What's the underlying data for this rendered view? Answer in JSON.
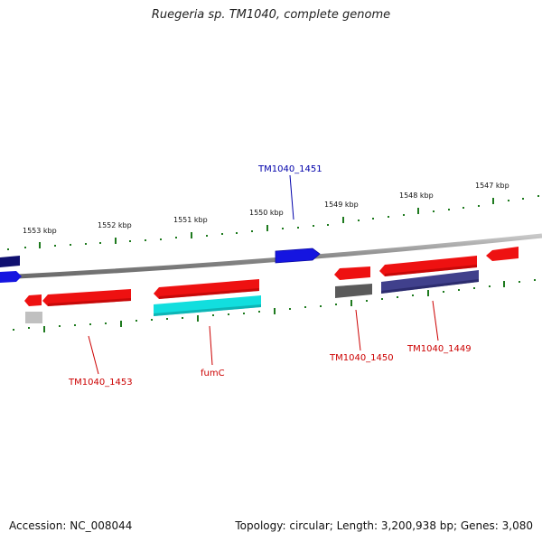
{
  "title": "Ruegeria sp. TM1040, complete genome",
  "footer": {
    "accession": "Accession: NC_008044",
    "topology": "Topology: circular; Length: 3,200,938 bp; Genes: 3,080"
  },
  "ruler_labels": [
    "1553 kbp",
    "1552 kbp",
    "1551 kbp",
    "1550 kbp",
    "1549 kbp",
    "1548 kbp",
    "1547 kbp"
  ],
  "gene_labels": [
    "TM1040_1451",
    "TM1040_1453",
    "fumC",
    "TM1040_1450",
    "TM1040_1449"
  ],
  "colors": {
    "backbone": "#8a8a8a",
    "tick": "#1e7a1e",
    "red": "#ee1111",
    "blue": "#1515e0",
    "navy": "#101070",
    "cyan": "#12dede",
    "gray": "#5a5a5a",
    "lightgray": "#c0c0c0",
    "purple": "#40408c"
  }
}
